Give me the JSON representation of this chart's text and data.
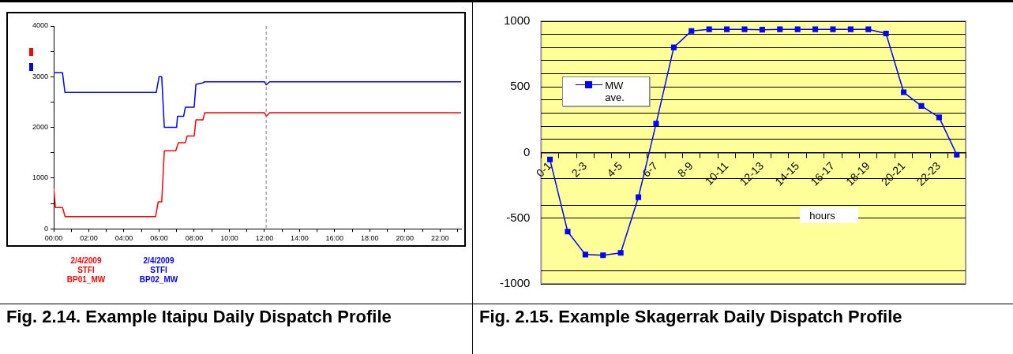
{
  "chart_data": [
    {
      "type": "line",
      "title": "Fig. 2.14. Example Itaipu Daily Dispatch Profile",
      "legend": "bottom",
      "marker": "none",
      "line_style": "solid",
      "xlim": [
        0,
        23.2
      ],
      "xticks": [
        {
          "value": 0,
          "label": "00:00"
        },
        {
          "value": 1,
          "label": null
        },
        {
          "value": 2,
          "label": "02:00"
        },
        {
          "value": 3,
          "label": null
        },
        {
          "value": 4,
          "label": "04:00"
        },
        {
          "value": 5,
          "label": null
        },
        {
          "value": 6,
          "label": "06:00"
        },
        {
          "value": 7,
          "label": null
        },
        {
          "value": 8,
          "label": "08:00"
        },
        {
          "value": 9,
          "label": null
        },
        {
          "value": 10,
          "label": "10:00"
        },
        {
          "value": 11,
          "label": null
        },
        {
          "value": 12,
          "label": "12:00"
        },
        {
          "value": 13,
          "label": null
        },
        {
          "value": 14,
          "label": "14:00"
        },
        {
          "value": 15,
          "label": null
        },
        {
          "value": 16,
          "label": "16:00"
        },
        {
          "value": 17,
          "label": null
        },
        {
          "value": 18,
          "label": "18:00"
        },
        {
          "value": 19,
          "label": null
        },
        {
          "value": 20,
          "label": "20:00"
        },
        {
          "value": 21,
          "label": null
        },
        {
          "value": 22,
          "label": "22:00"
        },
        {
          "value": 23,
          "label": null
        }
      ],
      "ylim": [
        0,
        4000
      ],
      "yticks": [
        0,
        {
          "value": 500,
          "label": null
        },
        1000,
        {
          "value": 1500,
          "label": null
        },
        2000,
        {
          "value": 2500,
          "label": null
        },
        3000,
        {
          "value": 3500,
          "label": null
        },
        4000
      ],
      "ref_lines": [
        {
          "axis": "x",
          "value": 12.1,
          "color": "#808080",
          "line_style": "dashed"
        }
      ],
      "series": [
        {
          "name": "2/4/2009 STFI BP01_MW",
          "color": "#ff0000",
          "x": [
            0,
            0.1,
            0.5,
            0.65,
            5.8,
            5.95,
            6.15,
            6.3,
            6.95,
            7.1,
            7.5,
            7.6,
            8.0,
            8.1,
            8.5,
            8.6,
            12.0,
            12.1,
            12.3,
            23.2
          ],
          "values": [
            800,
            420,
            420,
            240,
            240,
            530,
            530,
            1540,
            1540,
            1700,
            1700,
            1830,
            1830,
            2150,
            2150,
            2290,
            2290,
            2220,
            2290,
            2290
          ]
        },
        {
          "name": "2/4/2009 STFI BP02_MW",
          "color": "#0000ff",
          "x": [
            0,
            0.5,
            0.64,
            5.84,
            6.0,
            6.15,
            6.3,
            7.0,
            7.05,
            7.4,
            7.5,
            8.0,
            8.1,
            8.5,
            8.6,
            12.0,
            12.1,
            12.3,
            23.2
          ],
          "values": [
            3080,
            3080,
            2690,
            2690,
            3000,
            3000,
            2000,
            2000,
            2220,
            2220,
            2400,
            2400,
            2850,
            2880,
            2900,
            2900,
            2840,
            2900,
            2900
          ]
        }
      ]
    },
    {
      "type": "line",
      "title": "Fig. 2.15. Example Skagerrak Daily Dispatch Profile",
      "xlabel": "hours",
      "legend": "left",
      "marker": "square",
      "grid": "y",
      "categories": [
        "0-1",
        null,
        "2-3",
        null,
        "4-5",
        null,
        "6-7",
        null,
        "8-9",
        null,
        "10-11",
        null,
        "12-13",
        null,
        "14-15",
        null,
        "16-17",
        null,
        "18-19",
        null,
        "20-21",
        null,
        "22-23",
        null
      ],
      "ylim": [
        -1000,
        1000
      ],
      "yticks": [
        -1000,
        {
          "value": -900,
          "label": null
        },
        -500,
        {
          "value": -400,
          "label": null
        },
        {
          "value": -200,
          "label": null
        },
        0,
        {
          "value": 100,
          "label": null
        },
        {
          "value": 200,
          "label": null
        },
        {
          "value": 300,
          "label": null
        },
        {
          "value": 400,
          "label": null
        },
        500,
        {
          "value": 600,
          "label": null
        },
        {
          "value": 700,
          "label": null
        },
        {
          "value": 800,
          "label": null
        },
        {
          "value": 900,
          "label": null
        },
        1000
      ],
      "series": [
        {
          "name": "MW ave.",
          "color": "#0000ff",
          "values": [
            -53,
            -602,
            -777,
            -782,
            -764,
            -340,
            220,
            801,
            926,
            939,
            939,
            939,
            936,
            939,
            939,
            939,
            939,
            939,
            939,
            907,
            459,
            355,
            268,
            -16
          ]
        }
      ]
    }
  ]
}
